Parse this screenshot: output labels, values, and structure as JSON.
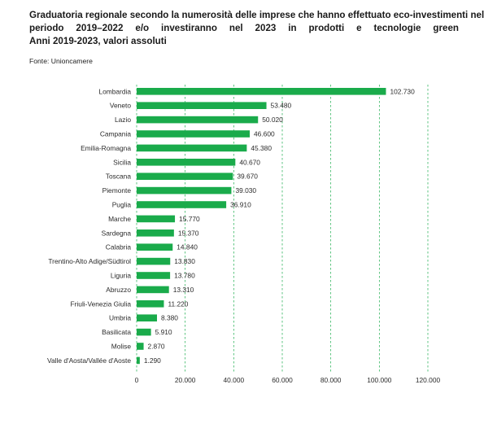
{
  "title_lines": [
    "Graduatoria regionale secondo la numerosità delle imprese che hanno effettuato eco-investimenti nel",
    "periodo 2019–2022 e/o investiranno nel 2023 in prodotti e tecnologie green",
    "Anni 2019-2023, valori assoluti"
  ],
  "source": "Fonte: Unioncamere",
  "colors": {
    "bar": "#1aab4b",
    "grid": "#1aab4b",
    "text": "#2b2b2b"
  },
  "chart_data": {
    "type": "bar",
    "orientation": "horizontal",
    "categories": [
      "Lombardia",
      "Veneto",
      "Lazio",
      "Campania",
      "Emilia-Romagna",
      "Sicilia",
      "Toscana",
      "Piemonte",
      "Puglia",
      "Marche",
      "Sardegna",
      "Calabria",
      "Trentino-Alto Adige/Südtirol",
      "Liguria",
      "Abruzzo",
      "Friuli-Venezia Giulia",
      "Umbria",
      "Basilicata",
      "Molise",
      "Valle d'Aosta/Vallée d'Aoste"
    ],
    "values": [
      102730,
      53480,
      50020,
      46600,
      45380,
      40670,
      39670,
      39030,
      36910,
      15770,
      15370,
      14840,
      13830,
      13780,
      13310,
      11220,
      8380,
      5910,
      2870,
      1290
    ],
    "value_labels": [
      "102.730",
      "53.480",
      "50.020",
      "46.600",
      "45.380",
      "40.670",
      "39.670",
      "39.030",
      "36.910",
      "15.770",
      "15.370",
      "14.840",
      "13.830",
      "13.780",
      "13.310",
      "11.220",
      "8.380",
      "5.910",
      "2.870",
      "1.290"
    ],
    "xlim": [
      0,
      120000
    ],
    "xticks": [
      0,
      20000,
      40000,
      60000,
      80000,
      100000,
      120000
    ],
    "xtick_labels": [
      "0",
      "20.000",
      "40.000",
      "60.000",
      "80.000",
      "100.000",
      "120.000"
    ],
    "grid": "vertical dashed",
    "legend": "none"
  }
}
